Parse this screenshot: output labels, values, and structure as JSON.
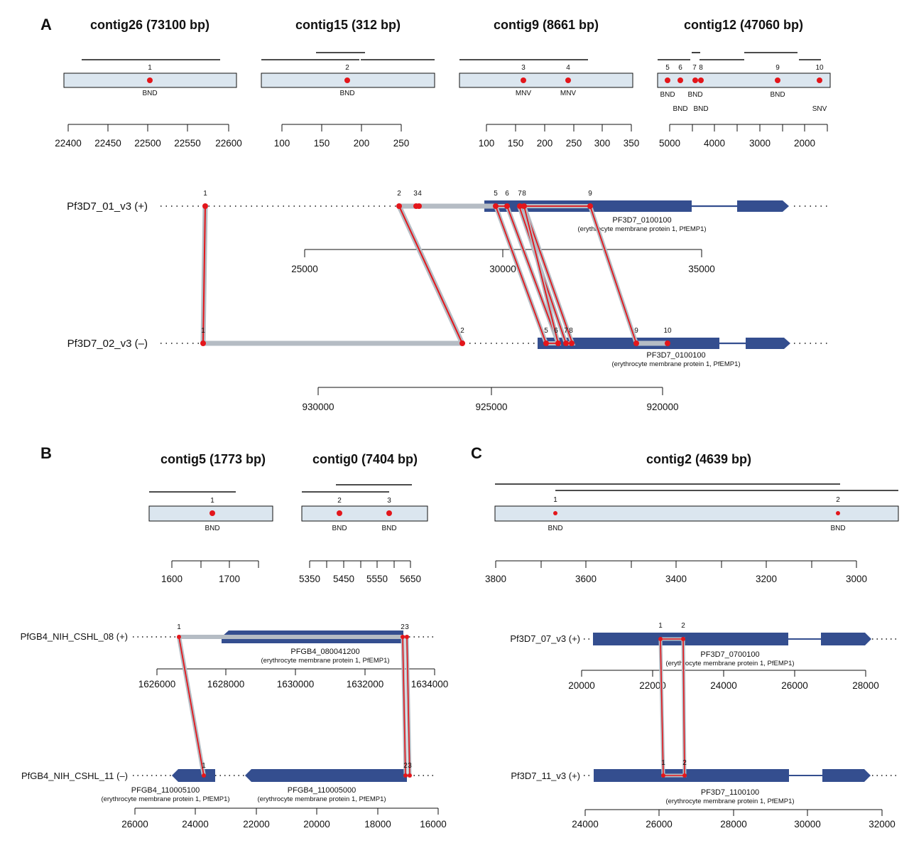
{
  "colors": {
    "contig_fill": "#dbe6ef",
    "gene_fill": "#344e8f",
    "variant_red": "#e3161b",
    "link_gray": "#b5bcc4",
    "text": "#111111"
  },
  "panels": {
    "A": {
      "letter": "A",
      "contigs": [
        {
          "title": "contig26 (73100 bp)",
          "variants": [
            {
              "n": "1",
              "type": "BND"
            }
          ],
          "ticks": [
            "22400",
            "22450",
            "22500",
            "22550",
            "22600"
          ]
        },
        {
          "title": "contig15 (312 bp)",
          "variants": [
            {
              "n": "2",
              "type": "BND"
            }
          ],
          "ticks": [
            "100",
            "150",
            "200",
            "250"
          ]
        },
        {
          "title": "contig9 (8661 bp)",
          "variants": [
            {
              "n": "3",
              "type": "MNV"
            },
            {
              "n": "4",
              "type": "MNV"
            }
          ],
          "ticks": [
            "100",
            "150",
            "200",
            "250",
            "300",
            "350"
          ]
        },
        {
          "title": "contig12 (47060 bp)",
          "variants": [
            {
              "n": "5",
              "type": "BND"
            },
            {
              "n": "6",
              "type": "BND"
            },
            {
              "n": "7",
              "type": "BND"
            },
            {
              "n": "8",
              "type": "BND"
            },
            {
              "n": "9",
              "type": "BND"
            },
            {
              "n": "10",
              "type": "SNV"
            }
          ],
          "ticks": [
            "5000",
            "4000",
            "3000",
            "2000"
          ]
        }
      ],
      "tracks": [
        {
          "label": "Pf3D7_01_v3 (+)",
          "gene_id": "PF3D7_0100100",
          "gene_desc": "(erythrocyte membrane protein 1, PfEMP1)",
          "ticks": [
            "25000",
            "30000",
            "35000"
          ],
          "points": [
            "1",
            "2",
            "3",
            "4",
            "5",
            "6",
            "7",
            "8",
            "9"
          ]
        },
        {
          "label": "Pf3D7_02_v3 (–)",
          "gene_id": "PF3D7_0100100",
          "gene_desc": "(erythrocyte membrane protein 1, PfEMP1)",
          "ticks": [
            "930000",
            "925000",
            "920000"
          ],
          "points": [
            "1",
            "2",
            "5",
            "6",
            "7",
            "8",
            "9",
            "10"
          ]
        }
      ]
    },
    "B": {
      "letter": "B",
      "contigs": [
        {
          "title": "contig5 (1773 bp)",
          "variants": [
            {
              "n": "1",
              "type": "BND"
            }
          ],
          "ticks": [
            "1600",
            "1700"
          ]
        },
        {
          "title": "contig0 (7404 bp)",
          "variants": [
            {
              "n": "2",
              "type": "BND"
            },
            {
              "n": "3",
              "type": "BND"
            }
          ],
          "ticks": [
            "5350",
            "5450",
            "5550",
            "5650"
          ]
        }
      ],
      "tracks": [
        {
          "label": "PfGB4_NIH_CSHL_08 (+)",
          "gene_id": "PFGB4_080041200",
          "gene_desc": "(erythrocyte membrane protein 1, PfEMP1)",
          "ticks": [
            "1626000",
            "1628000",
            "1630000",
            "1632000",
            "1634000"
          ],
          "points": [
            "1",
            "2",
            "3"
          ]
        },
        {
          "label": "PfGB4_NIH_CSHL_11 (–)",
          "gene1_id": "PFGB4_110005100",
          "gene1_desc": "(erythrocyte membrane protein 1, PfEMP1)",
          "gene2_id": "PFGB4_110005000",
          "gene2_desc": "(erythrocyte membrane protein 1, PfEMP1)",
          "ticks": [
            "26000",
            "24000",
            "22000",
            "20000",
            "18000",
            "16000"
          ],
          "points": [
            "1",
            "2",
            "3"
          ]
        }
      ]
    },
    "C": {
      "letter": "C",
      "contigs": [
        {
          "title": "contig2 (4639 bp)",
          "variants": [
            {
              "n": "1",
              "type": "BND"
            },
            {
              "n": "2",
              "type": "BND"
            }
          ],
          "ticks": [
            "3800",
            "3600",
            "3400",
            "3200",
            "3000"
          ]
        }
      ],
      "tracks": [
        {
          "label": "Pf3D7_07_v3 (+)",
          "gene_id": "PF3D7_0700100",
          "gene_desc": "(erythrocyte membrane protein 1, PfEMP1)",
          "ticks": [
            "20000",
            "22000",
            "24000",
            "26000",
            "28000"
          ],
          "points": [
            "1",
            "2"
          ]
        },
        {
          "label": "Pf3D7_11_v3 (+)",
          "gene_id": "PF3D7_1100100",
          "gene_desc": "(erythrocyte membrane protein 1, PfEMP1)",
          "ticks": [
            "24000",
            "26000",
            "28000",
            "30000",
            "32000"
          ],
          "points": [
            "1",
            "2"
          ]
        }
      ]
    }
  }
}
